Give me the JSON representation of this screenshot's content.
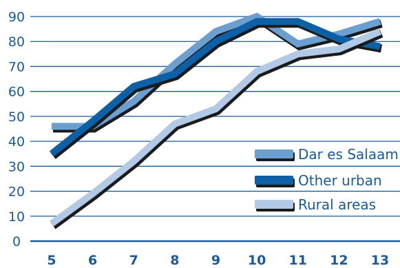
{
  "chart_data": {
    "type": "line",
    "title": "",
    "xlabel": "",
    "ylabel": "",
    "x": [
      5,
      6,
      7,
      8,
      9,
      10,
      11,
      12,
      13
    ],
    "x_tick_labels": [
      "5",
      "6",
      "7",
      "8",
      "9",
      "10",
      "11",
      "12",
      "13"
    ],
    "ylim": [
      0,
      90
    ],
    "y_ticks": [
      0,
      10,
      20,
      30,
      40,
      50,
      60,
      70,
      80,
      90
    ],
    "grid": "horizontal",
    "legend_position": "right",
    "series": [
      {
        "name": "Dar es Salaam",
        "color": "#6b9fd0",
        "values": [
          46,
          46,
          56,
          71,
          84,
          90,
          79,
          83,
          88
        ]
      },
      {
        "name": "Other urban",
        "color": "#0d5fa6",
        "values": [
          35,
          48,
          62,
          67,
          80,
          88,
          88,
          81,
          78
        ]
      },
      {
        "name": "Rural areas",
        "color": "#b2cae6",
        "values": [
          7,
          19,
          32,
          47,
          53,
          68,
          75,
          77,
          84
        ]
      }
    ],
    "colors": {
      "background": "#ffffff",
      "axis": "#1a5a9a",
      "grid": "#1a5a9a",
      "shadow": "#1b1b1b"
    }
  }
}
